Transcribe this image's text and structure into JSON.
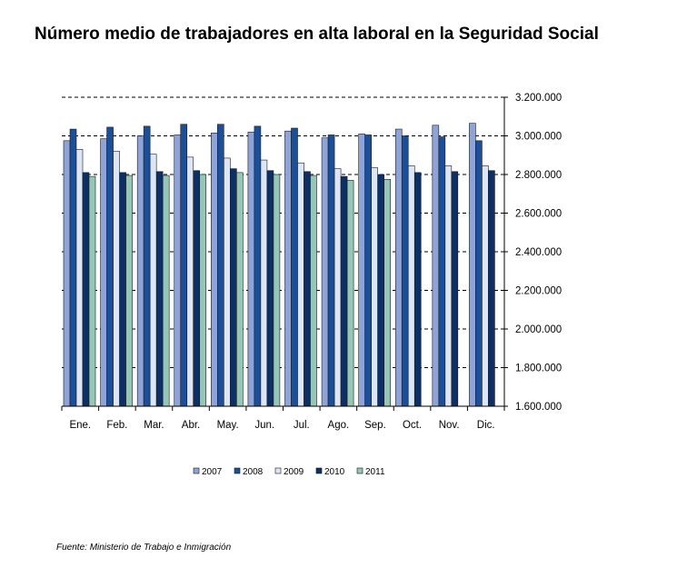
{
  "chart_data": {
    "type": "bar",
    "title": "Número medio de trabajadores en alta laboral en la Seguridad Social",
    "source": "Fuente: Ministerio de Trabajo e Inmigración",
    "categories": [
      "Ene.",
      "Feb.",
      "Mar.",
      "Abr.",
      "May.",
      "Jun.",
      "Jul.",
      "Ago.",
      "Sep.",
      "Oct.",
      "Nov.",
      "Dic."
    ],
    "series": [
      {
        "name": "2007",
        "color": "#8ea4d8",
        "values": [
          2975000,
          2985000,
          3000000,
          3005000,
          3015000,
          3020000,
          3025000,
          2990000,
          3010000,
          3035000,
          3055000,
          3065000
        ]
      },
      {
        "name": "2008",
        "color": "#1a4f9c",
        "values": [
          3035000,
          3045000,
          3050000,
          3060000,
          3060000,
          3050000,
          3040000,
          3005000,
          3005000,
          3000000,
          2995000,
          2975000
        ]
      },
      {
        "name": "2009",
        "color": "#dde6f4",
        "values": [
          2930000,
          2920000,
          2905000,
          2890000,
          2885000,
          2875000,
          2860000,
          2830000,
          2835000,
          2845000,
          2845000,
          2845000
        ]
      },
      {
        "name": "2010",
        "color": "#0b2f66",
        "values": [
          2810000,
          2810000,
          2815000,
          2820000,
          2830000,
          2820000,
          2815000,
          2790000,
          2800000,
          2810000,
          2815000,
          2820000
        ]
      },
      {
        "name": "2011",
        "color": "#94c8b5",
        "values": [
          2790000,
          2795000,
          2795000,
          2800000,
          2810000,
          2800000,
          2795000,
          2770000,
          2775000,
          null,
          null,
          null
        ]
      }
    ],
    "ylim": [
      1600000,
      3200000
    ],
    "yticks": [
      {
        "value": 1600000,
        "label": "1.600.000"
      },
      {
        "value": 1800000,
        "label": "1.800.000"
      },
      {
        "value": 2000000,
        "label": "2.000.000"
      },
      {
        "value": 2200000,
        "label": "2.200.000"
      },
      {
        "value": 2400000,
        "label": "2.400.000"
      },
      {
        "value": 2600000,
        "label": "2.600.000"
      },
      {
        "value": 2800000,
        "label": "2.800.000"
      },
      {
        "value": 3000000,
        "label": "3.000.000"
      },
      {
        "value": 3200000,
        "label": "3.200.000"
      }
    ],
    "y_axis_side": "right",
    "grid": true,
    "legend_position": "bottom"
  }
}
